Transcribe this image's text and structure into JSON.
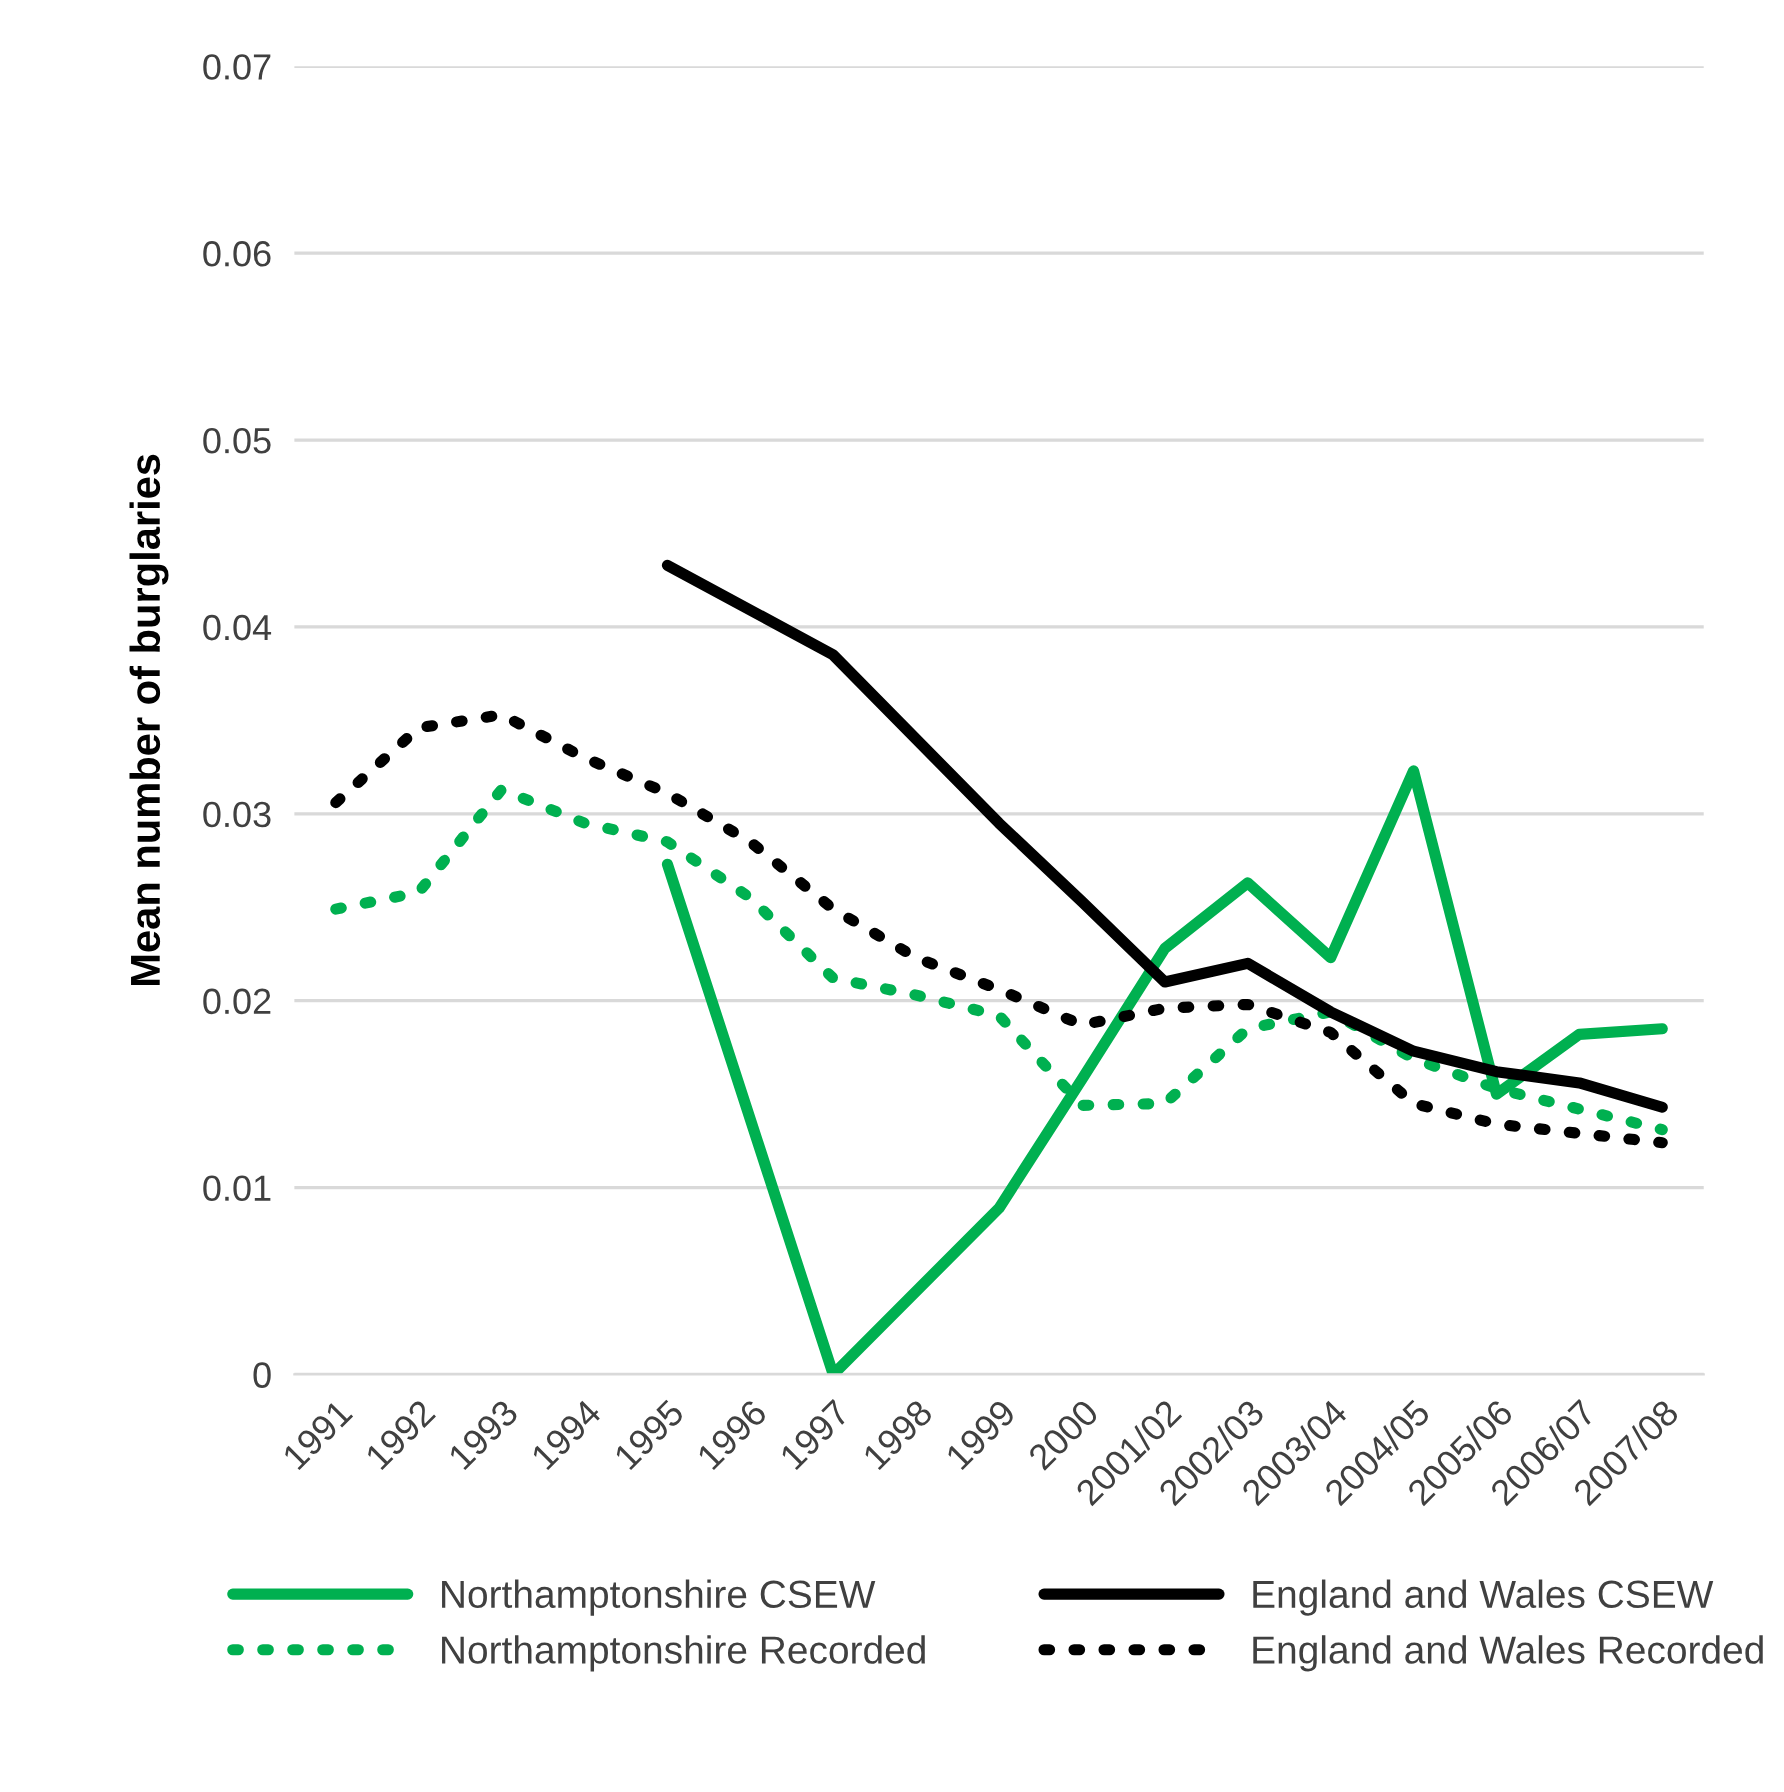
{
  "chart_data": {
    "type": "line",
    "ylabel": "Mean number of burglaries",
    "categories": [
      "1991",
      "1992",
      "1993",
      "1994",
      "1995",
      "1996",
      "1997",
      "1998",
      "1999",
      "2000",
      "2001/02",
      "2002/03",
      "2003/04",
      "2004/05",
      "2005/06",
      "2006/07",
      "2007/08"
    ],
    "series": [
      {
        "name": "Northamptonshire CSEW",
        "color": "#00b050",
        "line_style": "solid",
        "values": [
          null,
          null,
          null,
          null,
          0.0273,
          null,
          0,
          null,
          0.0089,
          0.0158,
          0.0228,
          0.0263,
          0.0223,
          0.0323,
          0.015,
          0.0182,
          0.0185
        ]
      },
      {
        "name": "Northamptonshire Recorded",
        "color": "#00b050",
        "line_style": "dotted",
        "values": [
          0.0249,
          0.0258,
          0.0313,
          0.0295,
          0.0285,
          0.0255,
          0.0212,
          0.0203,
          0.0192,
          0.0144,
          0.0145,
          0.0185,
          0.0194,
          0.0169,
          0.0153,
          0.0142,
          0.0131
        ]
      },
      {
        "name": "England and Wales CSEW",
        "color": "#000000",
        "line_style": "solid",
        "values": [
          null,
          null,
          null,
          null,
          0.0433,
          null,
          0.0385,
          null,
          0.0295,
          0.0253,
          0.021,
          0.022,
          0.0194,
          0.0173,
          0.0162,
          0.0156,
          0.0143
        ]
      },
      {
        "name": "England and Wales Recorded",
        "color": "#000000",
        "line_style": "dotted",
        "values": [
          0.0306,
          0.0346,
          0.0353,
          0.033,
          0.0311,
          0.0285,
          0.0249,
          0.0223,
          0.0206,
          0.0187,
          0.0196,
          0.0198,
          0.0183,
          0.0145,
          0.0134,
          0.0129,
          0.0124
        ]
      }
    ],
    "ylim": [
      0,
      0.07
    ],
    "yticks": [
      0,
      0.01,
      0.02,
      0.03,
      0.04,
      0.05,
      0.06,
      0.07
    ],
    "grid": "y",
    "legend": "bottom",
    "marker": "none"
  }
}
